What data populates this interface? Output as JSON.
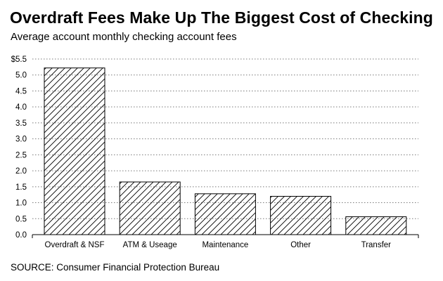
{
  "title": "Overdraft Fees Make Up The Biggest Cost of Checking",
  "subtitle": "Average account monthly checking account fees",
  "source": "SOURCE: Consumer Financial Protection Bureau",
  "chart_data": {
    "type": "bar",
    "categories": [
      "Overdraft & NSF",
      "ATM & Useage",
      "Maintenance",
      "Other",
      "Transfer"
    ],
    "values": [
      5.22,
      1.65,
      1.28,
      1.2,
      0.56
    ],
    "ylim": [
      0,
      5.5
    ],
    "y_ticks": [
      {
        "value": 0,
        "label": "0.0"
      },
      {
        "value": 0.5,
        "label": "0.5"
      },
      {
        "value": 1.0,
        "label": "1.0"
      },
      {
        "value": 1.5,
        "label": "1.5"
      },
      {
        "value": 2.0,
        "label": "2.0"
      },
      {
        "value": 2.5,
        "label": "2.5"
      },
      {
        "value": 3.0,
        "label": "3.0"
      },
      {
        "value": 3.5,
        "label": "3.5"
      },
      {
        "value": 4.0,
        "label": "4.0"
      },
      {
        "value": 4.5,
        "label": "4.5"
      },
      {
        "value": 5.0,
        "label": "5.0"
      },
      {
        "value": 5.5,
        "label": "$5.5"
      }
    ],
    "grid": true,
    "bar_fill": "diagonal-hatch",
    "colors": {
      "bar_stroke": "#000000",
      "hatch": "#000000",
      "grid": "#7a7a7a"
    }
  }
}
